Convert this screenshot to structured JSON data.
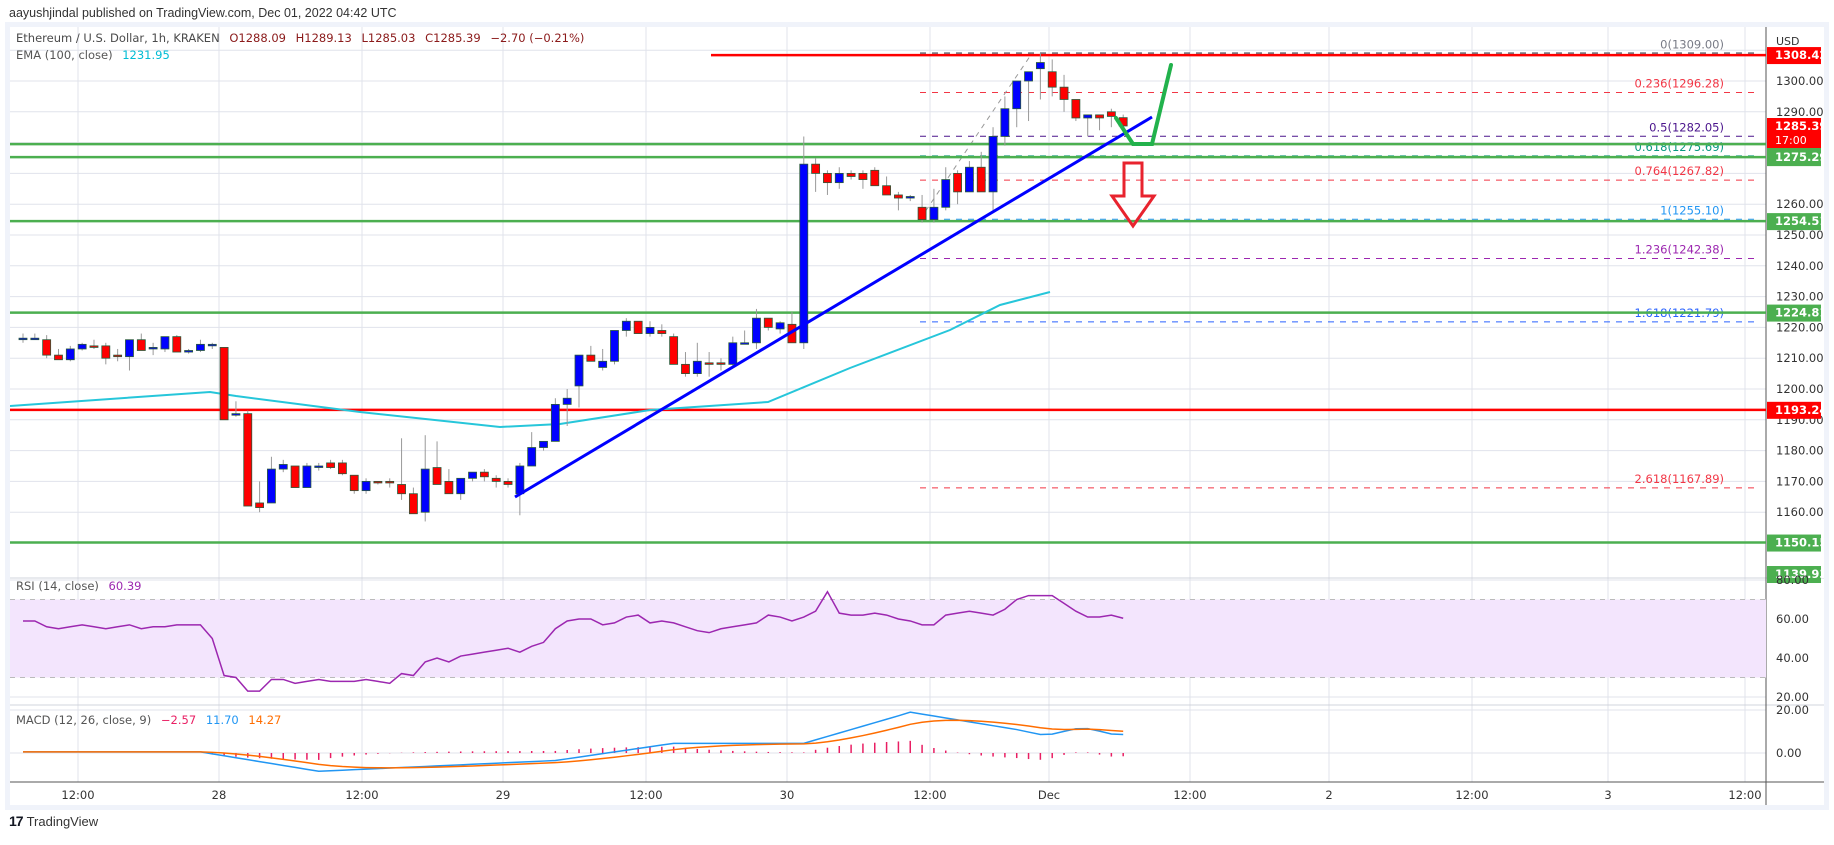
{
  "header": {
    "published": "aayushjindal published on TradingView.com, Dec 01, 2022 04:42 UTC"
  },
  "legend": {
    "symbol": "Ethereum / U.S. Dollar, 1h, KRAKEN",
    "open": "O1288.09",
    "high": "H1289.13",
    "low": "L1285.03",
    "close": "C1285.39",
    "change": "−2.70 (−0.21%)",
    "ema_label": "EMA (100, close)",
    "ema_value": "1231.95",
    "rsi_label": "RSI (14, close)",
    "rsi_value": "60.39",
    "macd_label": "MACD (12, 26, close, 9)",
    "macd_hist": "−2.57",
    "macd_line": "11.70",
    "macd_signal": "14.27"
  },
  "footer": {
    "brand": "TradingView",
    "logo_text": "17"
  },
  "colors": {
    "up": "#0000ff",
    "down": "#ff0000",
    "ema": "#26c6da",
    "support": "#4caf50",
    "resistance": "#ff0000",
    "trendline": "#0000ff",
    "rsi": "#9c27b0",
    "macd": "#2196f3",
    "signal": "#ff6d00",
    "hist": "#e91e63"
  },
  "chart_data": [
    {
      "type": "candlestick",
      "title": "Ethereum / U.S. Dollar, 1h, KRAKEN",
      "currency": "USD",
      "ylim": [
        1138,
        1312
      ],
      "yticks": [
        1160,
        1170,
        1180,
        1190,
        1200,
        1210,
        1220,
        1230,
        1240,
        1250,
        1260,
        1290,
        1300
      ],
      "xticks": [
        "12:00",
        "28",
        "12:00",
        "29",
        "12:00",
        "30",
        "12:00",
        "Dec",
        "12:00",
        "2",
        "12:00",
        "3",
        "12:00"
      ],
      "ohlc_last": {
        "open": 1288.09,
        "high": 1289.13,
        "low": 1285.03,
        "close": 1285.39,
        "change": -2.7,
        "change_pct": -0.21
      },
      "candles": [
        [
          1216.5,
          1218,
          1215,
          1216.5
        ],
        [
          1216.5,
          1218,
          1216,
          1216.5
        ],
        [
          1216,
          1217.5,
          1210,
          1211
        ],
        [
          1211,
          1213,
          1210,
          1209.5
        ],
        [
          1209.5,
          1214,
          1209,
          1213
        ],
        [
          1213,
          1215,
          1212.5,
          1214.5
        ],
        [
          1214,
          1216,
          1213,
          1213.5
        ],
        [
          1214,
          1215,
          1208,
          1210
        ],
        [
          1211,
          1213,
          1209,
          1210.5
        ],
        [
          1210.5,
          1216,
          1206,
          1216
        ],
        [
          1216,
          1218,
          1213,
          1212.5
        ],
        [
          1213,
          1215,
          1211,
          1213.5
        ],
        [
          1213,
          1217,
          1212,
          1217
        ],
        [
          1217,
          1217.5,
          1212,
          1212
        ],
        [
          1212,
          1213,
          1211.5,
          1212.5
        ],
        [
          1212.5,
          1216,
          1212,
          1214.5
        ],
        [
          1214.5,
          1215,
          1213,
          1214.5
        ],
        [
          1213.5,
          1213.5,
          1190,
          1190
        ],
        [
          1191.5,
          1196,
          1191,
          1192
        ],
        [
          1192,
          1193,
          1162,
          1162
        ],
        [
          1163,
          1170,
          1160,
          1161.5
        ],
        [
          1163,
          1178,
          1163,
          1174
        ],
        [
          1174,
          1177,
          1173,
          1175.5
        ],
        [
          1175,
          1175,
          1168,
          1168
        ],
        [
          1168,
          1176,
          1168,
          1175
        ],
        [
          1175,
          1176,
          1173.5,
          1175
        ],
        [
          1176,
          1177,
          1174,
          1174.5
        ],
        [
          1176,
          1177,
          1172,
          1172.5
        ],
        [
          1172,
          1172,
          1166,
          1167
        ],
        [
          1167,
          1171,
          1166,
          1170
        ],
        [
          1170,
          1170,
          1169,
          1169.5
        ],
        [
          1170,
          1171,
          1168,
          1169.5
        ],
        [
          1169,
          1184,
          1164,
          1166
        ],
        [
          1166,
          1168,
          1161,
          1159.5
        ],
        [
          1160,
          1185,
          1157,
          1174
        ],
        [
          1174.5,
          1183,
          1170,
          1169
        ],
        [
          1170,
          1174,
          1166,
          1166
        ],
        [
          1166,
          1170,
          1164,
          1171
        ],
        [
          1171,
          1172,
          1170,
          1173
        ],
        [
          1173,
          1174,
          1170,
          1171.5
        ],
        [
          1171,
          1172,
          1168,
          1170
        ],
        [
          1170,
          1171,
          1168,
          1169
        ],
        [
          1166,
          1176,
          1159,
          1175
        ],
        [
          1175,
          1186,
          1175,
          1181
        ],
        [
          1181,
          1183,
          1180,
          1183
        ],
        [
          1183,
          1197,
          1183,
          1195
        ],
        [
          1195,
          1200,
          1188,
          1197
        ],
        [
          1201,
          1208,
          1194,
          1211
        ],
        [
          1211,
          1214,
          1210,
          1209
        ],
        [
          1207,
          1213,
          1206,
          1209
        ],
        [
          1209,
          1219,
          1208,
          1219
        ],
        [
          1219,
          1223,
          1217,
          1222
        ],
        [
          1222,
          1222,
          1218,
          1218
        ],
        [
          1218,
          1222,
          1217,
          1220
        ],
        [
          1219,
          1221,
          1217,
          1218
        ],
        [
          1217,
          1218,
          1208,
          1208
        ],
        [
          1208,
          1212,
          1204,
          1205
        ],
        [
          1205,
          1215,
          1204,
          1209
        ],
        [
          1208.5,
          1212,
          1204,
          1208
        ],
        [
          1208.5,
          1210,
          1206,
          1208
        ],
        [
          1208,
          1217,
          1207,
          1215
        ],
        [
          1215,
          1219,
          1215,
          1215
        ],
        [
          1215,
          1226,
          1213,
          1223
        ],
        [
          1223,
          1223,
          1219,
          1220
        ],
        [
          1219.5,
          1222,
          1218,
          1221.5
        ],
        [
          1221,
          1225,
          1215,
          1215
        ],
        [
          1215,
          1282,
          1213,
          1273
        ],
        [
          1273,
          1275,
          1264,
          1270
        ],
        [
          1270,
          1271,
          1263,
          1267
        ],
        [
          1267,
          1272,
          1265,
          1270
        ],
        [
          1270,
          1271,
          1268,
          1269
        ],
        [
          1270,
          1271,
          1265,
          1268
        ],
        [
          1271,
          1272,
          1267,
          1266
        ],
        [
          1266,
          1269,
          1263,
          1263
        ],
        [
          1263,
          1264,
          1258,
          1262
        ],
        [
          1262,
          1263,
          1261,
          1262.5
        ],
        [
          1259,
          1263,
          1254,
          1255
        ],
        [
          1255,
          1265,
          1254,
          1259
        ],
        [
          1259,
          1272,
          1258,
          1268
        ],
        [
          1270,
          1271,
          1260,
          1264
        ],
        [
          1264,
          1274,
          1264,
          1272
        ],
        [
          1272,
          1277,
          1265,
          1264
        ],
        [
          1264,
          1285,
          1258,
          1282
        ],
        [
          1282,
          1295,
          1279,
          1291
        ],
        [
          1291,
          1299,
          1285,
          1300
        ],
        [
          1300,
          1303,
          1287,
          1303
        ],
        [
          1304,
          1309,
          1294,
          1306
        ],
        [
          1303,
          1307,
          1295,
          1298
        ],
        [
          1298,
          1302,
          1290,
          1294
        ],
        [
          1294,
          1290,
          1287,
          1288
        ],
        [
          1288,
          1289,
          1282,
          1289
        ],
        [
          1289,
          1289,
          1284,
          1288
        ],
        [
          1290,
          1291,
          1285,
          1288.5
        ],
        [
          1288.1,
          1289.1,
          1285,
          1285.4
        ]
      ],
      "ema100": {
        "label": "EMA (100, close)",
        "last": 1231.95
      },
      "horizontal_levels": [
        {
          "price": 1308.42,
          "color": "#ff0000",
          "label": "1308.42"
        },
        {
          "price": 1279.52,
          "color": "#4caf50",
          "label": "1279.52"
        },
        {
          "price": 1275.29,
          "color": "#4caf50",
          "label": "1275.29"
        },
        {
          "price": 1254.51,
          "color": "#4caf50",
          "label": "1254.51"
        },
        {
          "price": 1224.81,
          "color": "#4caf50",
          "label": "1224.81"
        },
        {
          "price": 1193.24,
          "color": "#ff0000",
          "label": "1193.24"
        },
        {
          "price": 1150.15,
          "color": "#4caf50",
          "label": "1150.15"
        },
        {
          "price": 1139.93,
          "color": "#4caf50",
          "label": "1139.93"
        }
      ],
      "current_price": {
        "price": 1285.39,
        "countdown": "17:00"
      },
      "fibonacci": [
        {
          "level": "0",
          "price": 1309.0,
          "color": "#787b86"
        },
        {
          "level": "0.236",
          "price": 1296.28,
          "color": "#f23645"
        },
        {
          "level": "0.5",
          "price": 1282.05,
          "color": "#4a148c"
        },
        {
          "level": "0.618",
          "price": 1275.69,
          "color": "#089981"
        },
        {
          "level": "0.764",
          "price": 1267.82,
          "color": "#f23645"
        },
        {
          "level": "1",
          "price": 1255.1,
          "color": "#2196f3"
        },
        {
          "level": "1.236",
          "price": 1242.38,
          "color": "#9c27b0"
        },
        {
          "level": "1.618",
          "price": 1221.79,
          "color": "#2962ff"
        },
        {
          "level": "2.618",
          "price": 1167.89,
          "color": "#f23645"
        }
      ],
      "trendline": {
        "from": {
          "candle": 35,
          "price": 1165
        },
        "to": {
          "candle": 81,
          "price": 1290
        }
      }
    },
    {
      "type": "line",
      "title": "RSI (14, close)",
      "last": 60.39,
      "ylim": [
        15,
        85
      ],
      "yticks": [
        20,
        40,
        60,
        80
      ],
      "band": [
        30,
        70
      ],
      "values": [
        59,
        59,
        56,
        55,
        56,
        57,
        56,
        55,
        56,
        57,
        55,
        56,
        56,
        57,
        57,
        57,
        50,
        31,
        30,
        23,
        23,
        29,
        29,
        27,
        28,
        29,
        28,
        28,
        28,
        29,
        28,
        27,
        32,
        31,
        38,
        40,
        38,
        41,
        42,
        43,
        44,
        45,
        43,
        46,
        48,
        55,
        59,
        60,
        60,
        57,
        58,
        61,
        62,
        58,
        59,
        58,
        56,
        54,
        53,
        55,
        56,
        57,
        58,
        62,
        61,
        59,
        61,
        64,
        74,
        63,
        62,
        62,
        63,
        62,
        60,
        59,
        57,
        57,
        62,
        63,
        64,
        63,
        62,
        65,
        70,
        72,
        72,
        72,
        68,
        64,
        61,
        61,
        62,
        60.39
      ]
    },
    {
      "type": "line",
      "title": "MACD (12, 26, close, 9)",
      "hist_last": -2.57,
      "macd_last": 11.7,
      "signal_last": 14.27,
      "ylim": [
        -8,
        22
      ],
      "yticks": [
        0,
        20
      ]
    }
  ]
}
